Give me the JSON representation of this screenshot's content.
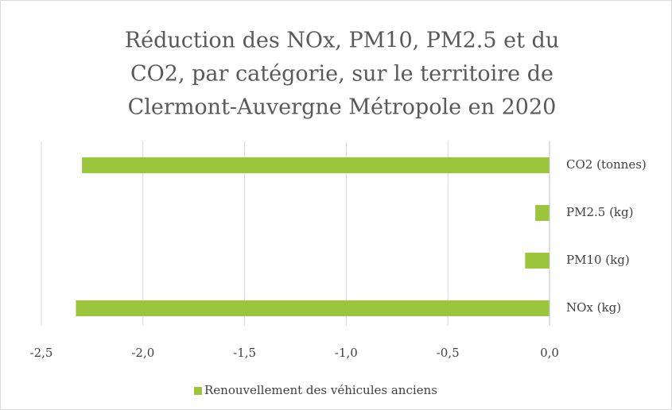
{
  "chart_data": {
    "type": "hbar",
    "title": [
      "Réduction des NOx, PM10, PM2.5 et du",
      "CO2, par catégorie, sur le territoire de",
      "Clermont-Auvergne Métropole en 2020"
    ],
    "categories": [
      "CO2 (tonnes)",
      "PM2.5 (kg)",
      "PM10 (kg)",
      "NOx (kg)"
    ],
    "series": [
      {
        "name": "Renouvellement des véhicules anciens",
        "color": "#9bc53d",
        "values": [
          -2.3,
          -0.07,
          -0.12,
          -2.33
        ]
      }
    ],
    "xlim": [
      -2.5,
      0
    ],
    "xticks": [
      {
        "value": -2.5,
        "label": "-2,5"
      },
      {
        "value": -2.0,
        "label": "-2,0"
      },
      {
        "value": -1.5,
        "label": "-1,5"
      },
      {
        "value": -1.0,
        "label": "-1,0"
      },
      {
        "value": -0.5,
        "label": "-0,5"
      },
      {
        "value": 0,
        "label": "0,0"
      }
    ],
    "grid": true,
    "legend": "bottom"
  }
}
